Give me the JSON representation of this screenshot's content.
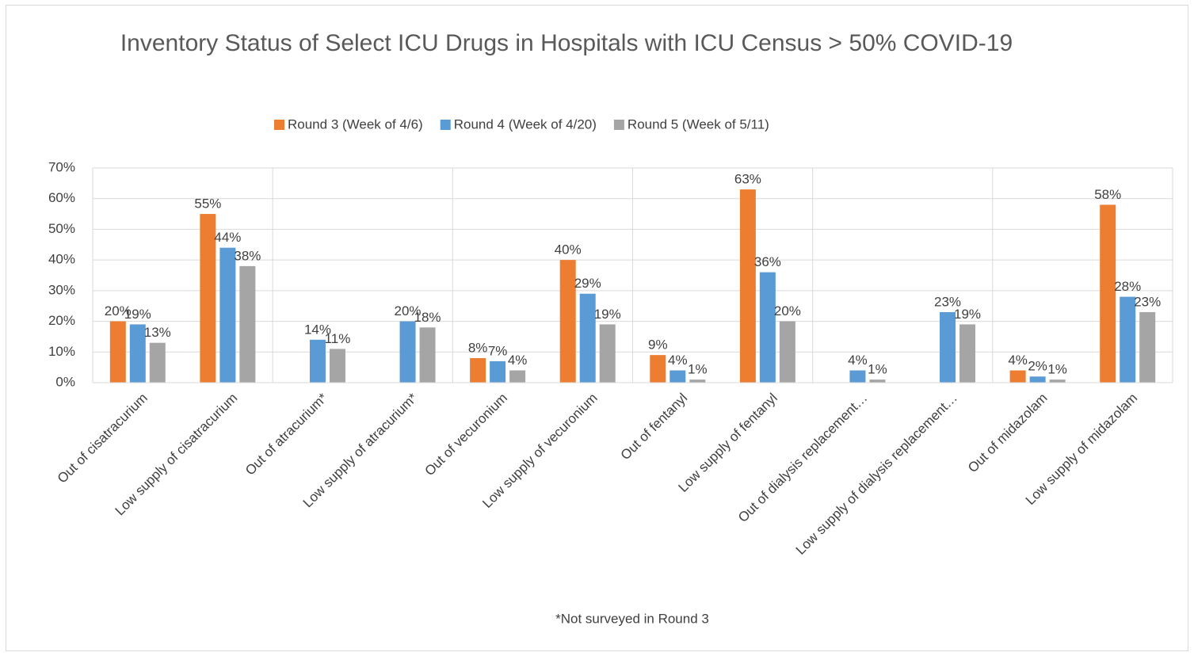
{
  "chart_data": {
    "type": "bar",
    "title": "Inventory Status of Select ICU Drugs in Hospitals with ICU Census > 50% COVID-19",
    "categories": [
      "Out of cisatracurium",
      "Low supply of cisatracurium",
      "Out of atracurium*",
      "Low supply of atracurium*",
      "Out of vecuronium",
      "Low supply of vecuronium",
      "Out of fentanyl",
      "Low supply of fentanyl",
      "Out of dialysis replacement…",
      "Low supply of dialysis replacement…",
      "Out of midazolam",
      "Low supply of midazolam"
    ],
    "series": [
      {
        "name": "Round 3 (Week of 4/6)",
        "color": "#ed7d31",
        "values": [
          20,
          55,
          null,
          null,
          8,
          40,
          9,
          63,
          null,
          null,
          4,
          58
        ],
        "value_labels": [
          "20%",
          "55%",
          null,
          null,
          "8%",
          "40%",
          "9%",
          "63%",
          null,
          null,
          "4%",
          "58%"
        ]
      },
      {
        "name": "Round 4 (Week of 4/20)",
        "color": "#5b9bd5",
        "values": [
          19,
          44,
          14,
          20,
          7,
          29,
          4,
          36,
          4,
          23,
          2,
          28
        ],
        "value_labels": [
          "19%",
          "44%",
          "14%",
          "20%",
          "7%",
          "29%",
          "4%",
          "36%",
          "4%",
          "23%",
          "2%",
          "28%"
        ]
      },
      {
        "name": "Round 5 (Week of 5/11)",
        "color": "#a5a5a5",
        "values": [
          13,
          38,
          11,
          18,
          4,
          19,
          1,
          20,
          1,
          19,
          1,
          23
        ],
        "value_labels": [
          "13%",
          "38%",
          "11%",
          "18%",
          "4%",
          "19%",
          "1%",
          "20%",
          "1%",
          "19%",
          "1%",
          "23%"
        ]
      }
    ],
    "ylim": [
      0,
      70
    ],
    "yticks": [
      {
        "value": 0,
        "label": "0%"
      },
      {
        "value": 10,
        "label": "10%"
      },
      {
        "value": 20,
        "label": "20%"
      },
      {
        "value": 30,
        "label": "30%"
      },
      {
        "value": 40,
        "label": "40%"
      },
      {
        "value": 50,
        "label": "50%"
      },
      {
        "value": 60,
        "label": "60%"
      },
      {
        "value": 70,
        "label": "70%"
      }
    ],
    "grid": true,
    "legend": "top",
    "annotation": "*Not surveyed in Round 3"
  }
}
